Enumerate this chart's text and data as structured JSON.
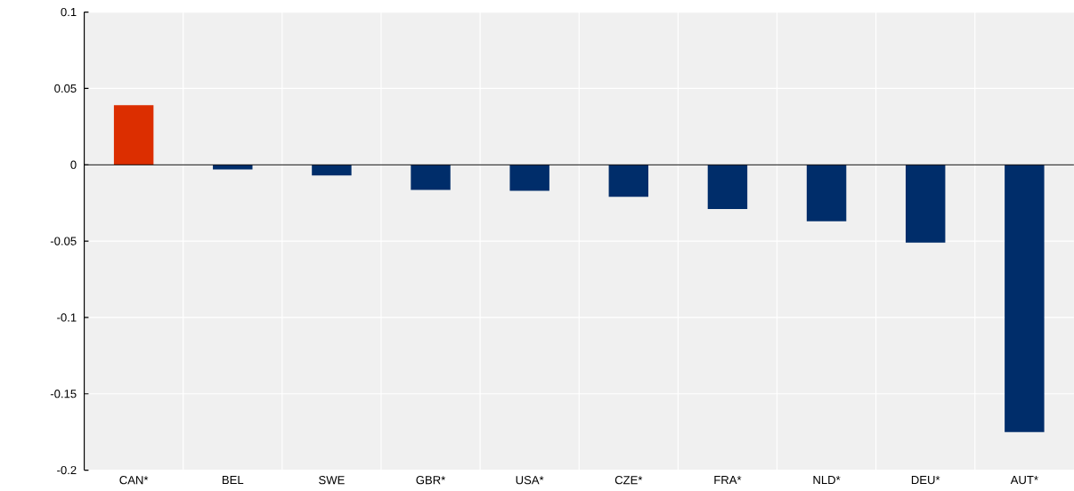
{
  "chart_data": {
    "type": "bar",
    "categories": [
      "CAN*",
      "BEL",
      "SWE",
      "GBR*",
      "USA*",
      "CZE*",
      "FRA*",
      "NLD*",
      "DEU*",
      "AUT*"
    ],
    "values": [
      0.039,
      -0.003,
      -0.007,
      -0.0165,
      -0.017,
      -0.021,
      -0.029,
      -0.037,
      -0.051,
      -0.175
    ],
    "colors": [
      "#dc2e00",
      "#002d6a",
      "#002d6a",
      "#002d6a",
      "#002d6a",
      "#002d6a",
      "#002d6a",
      "#002d6a",
      "#002d6a",
      "#002d6a"
    ],
    "ylim": [
      -0.2,
      0.1
    ],
    "yticks": [
      -0.2,
      -0.15,
      -0.1,
      -0.05,
      0,
      0.05,
      0.1
    ],
    "grid": true
  }
}
